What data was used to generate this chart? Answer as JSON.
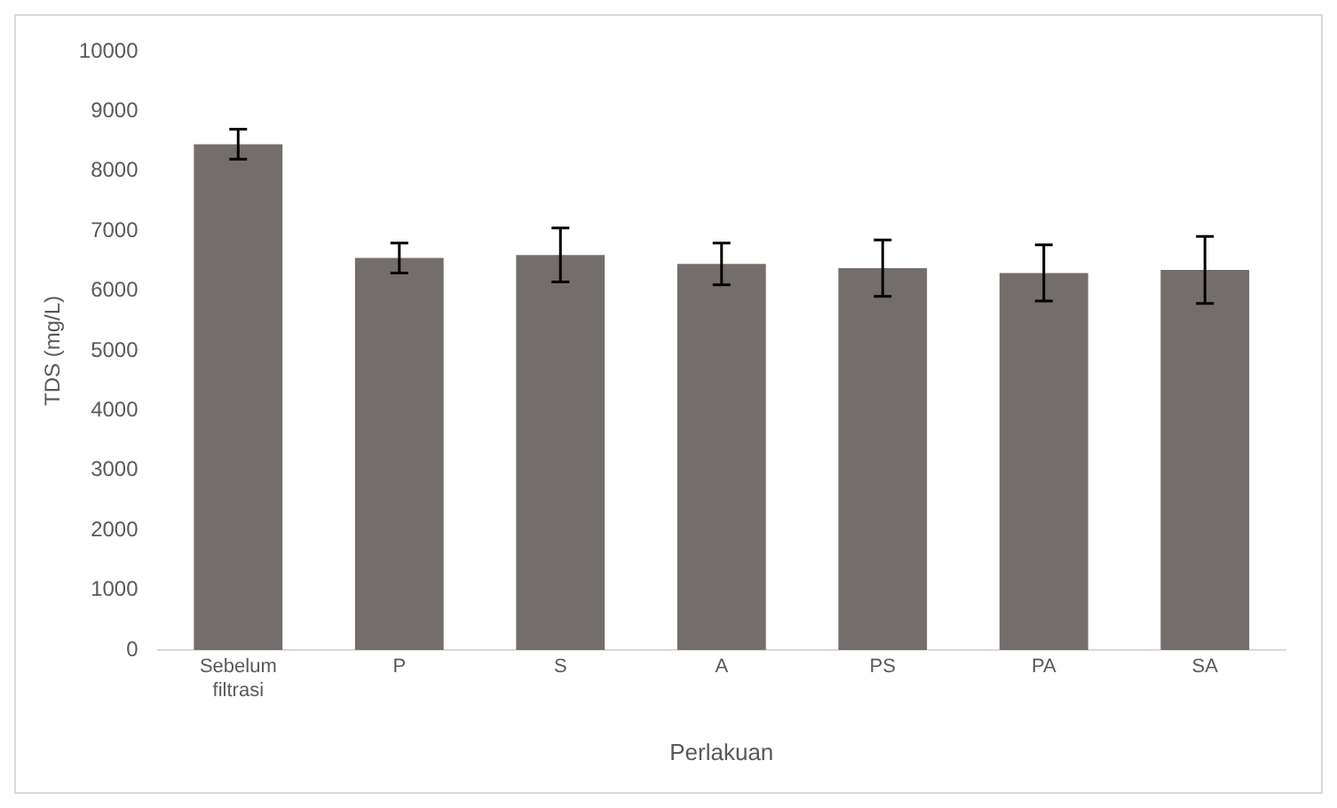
{
  "chart_data": {
    "type": "bar",
    "xlabel": "Perlakuan",
    "ylabel": "TDS (mg/L)",
    "categories": [
      "Sebelum filtrasi",
      "P",
      "S",
      "A",
      "PS",
      "PA",
      "SA"
    ],
    "values": [
      8450,
      6550,
      6600,
      6450,
      6380,
      6300,
      6350
    ],
    "errors": [
      250,
      250,
      450,
      350,
      470,
      470,
      560
    ],
    "color": "#736e6c",
    "ylim": [
      0,
      10000
    ],
    "yticks": [
      0,
      1000,
      2000,
      3000,
      4000,
      5000,
      6000,
      7000,
      8000,
      9000,
      10000
    ],
    "grid": false,
    "legend": false
  }
}
